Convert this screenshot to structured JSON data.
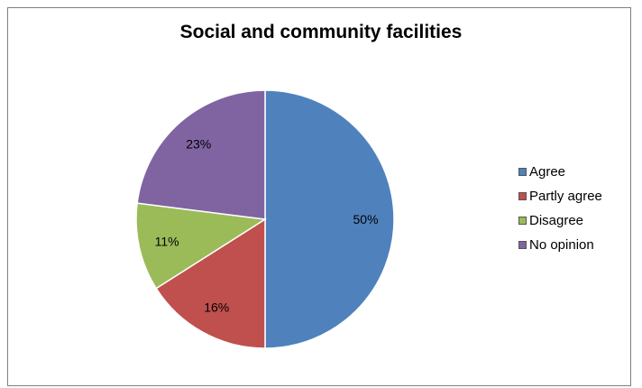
{
  "chart_data": {
    "type": "pie",
    "title": "Social and community facilities",
    "categories": [
      "Agree",
      "Partly agree",
      "Disagree",
      "No opinion"
    ],
    "values": [
      50,
      16,
      11,
      23
    ],
    "labels": [
      "50%",
      "16%",
      "11%",
      "23%"
    ],
    "colors": [
      "#4f81bd",
      "#c0504d",
      "#9bbb59",
      "#8064a2"
    ],
    "start_angle": "12 o'clock",
    "direction": "clockwise",
    "legend_position": "right"
  }
}
